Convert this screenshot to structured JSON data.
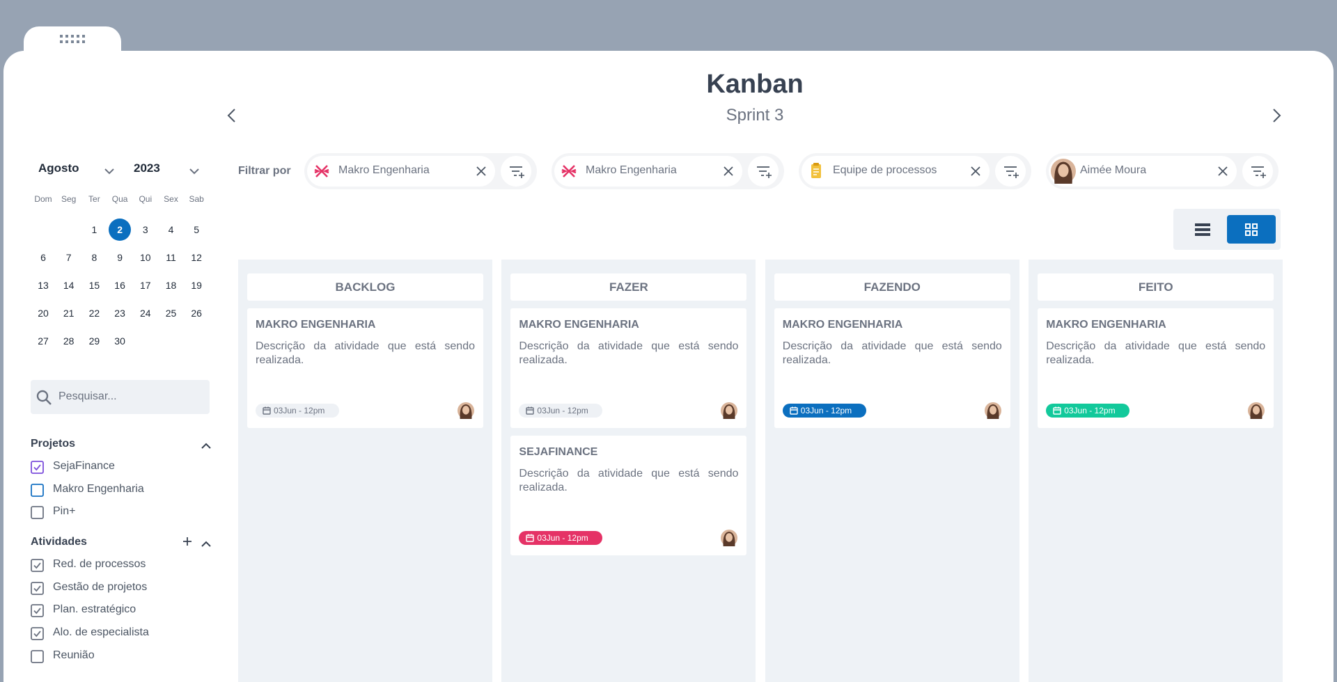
{
  "header": {
    "title": "Kanban",
    "subtitle": "Sprint 3"
  },
  "calendar": {
    "month": "Agosto",
    "year": "2023",
    "weekdays": [
      "Dom",
      "Seg",
      "Ter",
      "Qua",
      "Qui",
      "Sex",
      "Sab"
    ],
    "days": [
      1,
      2,
      3,
      4,
      5,
      6,
      7,
      8,
      9,
      10,
      11,
      12,
      13,
      14,
      15,
      16,
      17,
      18,
      19,
      20,
      21,
      22,
      23,
      24,
      25,
      26,
      27,
      28,
      29,
      30
    ],
    "selected_day": 2
  },
  "search": {
    "placeholder": "Pesquisar..."
  },
  "projects": {
    "title": "Projetos",
    "items": [
      {
        "label": "SejaFinance",
        "checked": true,
        "color": "#7c4ddb"
      },
      {
        "label": "Makro Engenharia",
        "checked": false,
        "color": "#1570c2"
      },
      {
        "label": "Pin+",
        "checked": false,
        "color": "#6b7280"
      }
    ]
  },
  "activities": {
    "title": "Atividades",
    "items": [
      {
        "label": "Red. de processos",
        "checked": true,
        "color": "#6b7280"
      },
      {
        "label": "Gestão de projetos",
        "checked": true,
        "color": "#6b7280"
      },
      {
        "label": "Plan. estratégico",
        "checked": true,
        "color": "#6b7280"
      },
      {
        "label": "Alo. de especialista",
        "checked": true,
        "color": "#6b7280"
      },
      {
        "label": "Reunião",
        "checked": false,
        "color": "#6b7280"
      }
    ]
  },
  "filter": {
    "label": "Filtrar por",
    "chips": [
      "Makro Engenharia",
      "Makro Engenharia",
      "Equipe de processos",
      "Aimée Moura"
    ]
  },
  "board": {
    "columns": [
      {
        "title": "BACKLOG",
        "cards": [
          {
            "title": "MAKRO ENGENHARIA",
            "description": "Descrição da atividade que está sendo realizada.",
            "date": "03Jun - 12pm",
            "date_color": "#eef1f5"
          }
        ]
      },
      {
        "title": "FAZER",
        "cards": [
          {
            "title": "MAKRO ENGENHARIA",
            "description": "Descrição da atividade que está sendo realizada.",
            "date": "03Jun - 12pm",
            "date_color": "#eef1f5"
          },
          {
            "title": "SEJAFINANCE",
            "description": "Descrição da atividade que está sendo realizada.",
            "date": "03Jun - 12pm",
            "date_color": "#e53266"
          }
        ]
      },
      {
        "title": "FAZENDO",
        "cards": [
          {
            "title": "MAKRO ENGENHARIA",
            "description": "Descrição da atividade que está sendo realizada.",
            "date": "03Jun - 12pm",
            "date_color": "#0b6fbf"
          }
        ]
      },
      {
        "title": "FEITO",
        "cards": [
          {
            "title": "MAKRO ENGENHARIA",
            "description": "Descrição da atividade que está sendo realizada.",
            "date": "03Jun - 12pm",
            "date_color": "#12c99b"
          }
        ]
      }
    ]
  }
}
